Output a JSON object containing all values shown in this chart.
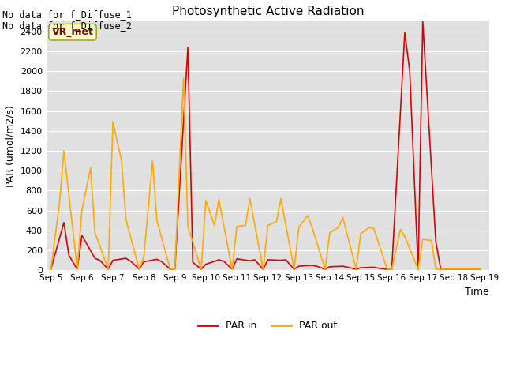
{
  "title": "Photosynthetic Active Radiation",
  "xlabel": "Time",
  "ylabel": "PAR (umol/m2/s)",
  "text_topleft_line1": "No data for f_Diffuse_1",
  "text_topleft_line2": "No data for f_Diffuse_2",
  "legend_label_box": "VR_met",
  "legend_entries": [
    "PAR in",
    "PAR out"
  ],
  "color_par_in": "#dd0000",
  "color_par_out": "#ffaa00",
  "background_color": "#e0e0e0",
  "ylim": [
    0,
    2500
  ],
  "yticks": [
    0,
    200,
    400,
    600,
    800,
    1000,
    1200,
    1400,
    1600,
    1800,
    2000,
    2200,
    2400
  ],
  "xlim": [
    4.85,
    19.15
  ],
  "xtick_positions": [
    5,
    6,
    7,
    8,
    9,
    10,
    11,
    12,
    13,
    14,
    15,
    16,
    17,
    18,
    19
  ],
  "xtick_labels": [
    "Sep 5",
    "Sep 6",
    "Sep 7",
    "Sep 8",
    "Sep 9",
    "Sep 10",
    "Sep 11",
    "Sep 12",
    "Sep 13",
    "Sep 14",
    "Sep 15",
    "Sep 16",
    "Sep 17",
    "Sep 18",
    "Sep 19"
  ],
  "x_par_in": [
    5.0,
    5.42,
    5.58,
    5.85,
    6.0,
    6.42,
    6.58,
    6.85,
    7.0,
    7.42,
    7.58,
    7.85,
    8.0,
    8.42,
    8.58,
    8.85,
    9.0,
    9.42,
    9.58,
    9.85,
    10.0,
    10.42,
    10.58,
    10.85,
    11.0,
    11.42,
    11.58,
    11.85,
    12.0,
    12.42,
    12.58,
    12.85,
    13.0,
    13.42,
    13.58,
    13.85,
    14.0,
    14.42,
    14.58,
    14.85,
    15.0,
    15.42,
    15.58,
    15.85,
    16.0,
    16.42,
    16.58,
    16.85,
    17.0,
    17.42,
    17.58,
    17.85,
    18.0,
    18.42,
    18.58,
    18.85
  ],
  "y_par_in": [
    10,
    480,
    150,
    10,
    350,
    120,
    100,
    10,
    100,
    120,
    90,
    10,
    85,
    110,
    85,
    10,
    10,
    2240,
    80,
    10,
    60,
    105,
    90,
    10,
    115,
    95,
    105,
    10,
    105,
    100,
    105,
    10,
    40,
    50,
    40,
    10,
    35,
    40,
    30,
    10,
    25,
    30,
    20,
    10,
    10,
    2390,
    2000,
    10,
    2500,
    290,
    10,
    10,
    10,
    10,
    10,
    10
  ],
  "x_par_out": [
    5.0,
    5.28,
    5.42,
    5.85,
    6.0,
    6.28,
    6.42,
    6.85,
    7.0,
    7.28,
    7.42,
    7.85,
    8.0,
    8.28,
    8.42,
    8.85,
    9.0,
    9.28,
    9.42,
    9.85,
    10.0,
    10.28,
    10.42,
    10.85,
    11.0,
    11.28,
    11.42,
    11.85,
    12.0,
    12.28,
    12.42,
    12.85,
    13.0,
    13.28,
    13.42,
    13.85,
    14.0,
    14.28,
    14.42,
    14.85,
    15.0,
    15.28,
    15.42,
    15.85,
    16.0,
    16.28,
    16.42,
    16.85,
    17.0,
    17.28,
    17.42,
    17.85,
    18.0,
    18.28,
    18.42,
    18.85
  ],
  "y_par_out": [
    10,
    680,
    1200,
    10,
    600,
    1030,
    380,
    10,
    1490,
    1100,
    510,
    10,
    140,
    1100,
    500,
    10,
    10,
    1930,
    440,
    10,
    700,
    450,
    710,
    10,
    440,
    450,
    720,
    10,
    450,
    490,
    720,
    10,
    430,
    550,
    440,
    10,
    380,
    430,
    530,
    10,
    370,
    430,
    420,
    10,
    10,
    410,
    340,
    10,
    310,
    300,
    10,
    10,
    10,
    10,
    10,
    10
  ]
}
